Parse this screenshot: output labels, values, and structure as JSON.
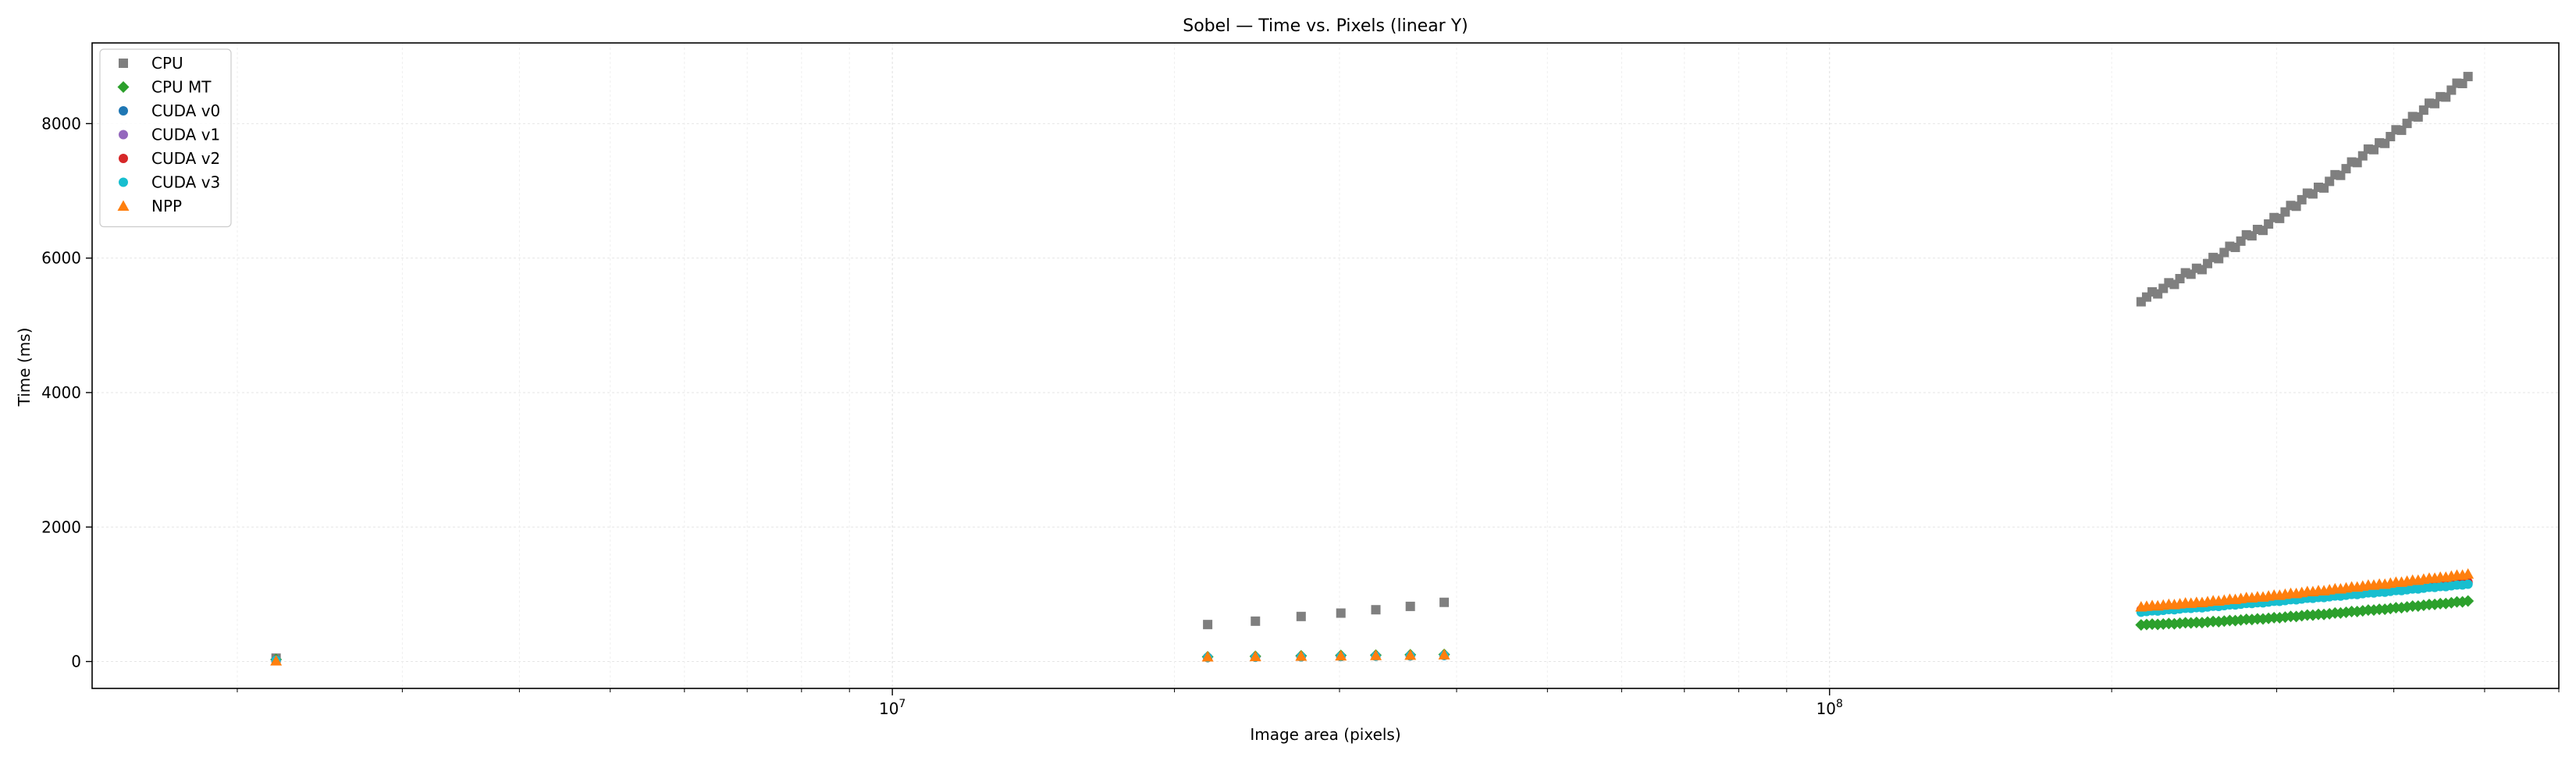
{
  "chart_data": {
    "type": "scatter",
    "title": "Sobel — Time vs. Pixels (linear Y)",
    "xlabel": "Image area (pixels)",
    "ylabel": "Time (ms)",
    "xscale": "log",
    "xlim": [
      1400000,
      600000000
    ],
    "ylim": [
      -400,
      9200
    ],
    "xticks": [
      {
        "value": 10000000,
        "label": "10^7"
      },
      {
        "value": 100000000,
        "label": "10^8"
      }
    ],
    "yticks": [
      0,
      2000,
      4000,
      6000,
      8000
    ],
    "ytick_labels": [
      "0",
      "2000",
      "4000",
      "6000",
      "8000"
    ],
    "grid": true,
    "legend_position": "upper-left",
    "series": [
      {
        "name": "CPU",
        "color": "#7f7f7f",
        "marker": "square",
        "x": [
          2200000,
          21700000,
          24400000,
          27300000,
          30100000,
          32800000,
          35700000,
          38800000
        ],
        "y": [
          50,
          550,
          600,
          670,
          720,
          770,
          820,
          880
        ],
        "dense": {
          "x_start": 215000000,
          "x_end": 480000000,
          "y_start": 5400,
          "y_end": 8700,
          "count": 60,
          "curve": 1.15
        }
      },
      {
        "name": "CPU MT",
        "color": "#2ca02c",
        "marker": "diamond",
        "x": [
          2200000,
          21700000,
          24400000,
          27300000,
          30100000,
          32800000,
          35700000,
          38800000
        ],
        "y": [
          30,
          70,
          78,
          85,
          90,
          95,
          100,
          105
        ],
        "dense": {
          "x_start": 215000000,
          "x_end": 480000000,
          "y_start": 550,
          "y_end": 900,
          "count": 60,
          "curve": 1.4
        }
      },
      {
        "name": "CUDA v0",
        "color": "#1f77b4",
        "marker": "circle",
        "x": [
          2200000,
          21700000,
          24400000,
          27300000,
          30100000,
          32800000,
          35700000,
          38800000
        ],
        "y": [
          20,
          60,
          65,
          70,
          75,
          80,
          85,
          90
        ],
        "dense": {
          "x_start": 215000000,
          "x_end": 480000000,
          "y_start": 760,
          "y_end": 1160,
          "count": 60,
          "curve": 1.1
        }
      },
      {
        "name": "CUDA v1",
        "color": "#9467bd",
        "marker": "circle",
        "x": [
          2200000,
          21700000,
          24400000,
          27300000,
          30100000,
          32800000,
          35700000,
          38800000
        ],
        "y": [
          20,
          60,
          65,
          70,
          75,
          80,
          85,
          90
        ],
        "dense": {
          "x_start": 215000000,
          "x_end": 480000000,
          "y_start": 770,
          "y_end": 1170,
          "count": 60,
          "curve": 1.1
        }
      },
      {
        "name": "CUDA v2",
        "color": "#d62728",
        "marker": "circle",
        "x": [
          2200000,
          21700000,
          24400000,
          27300000,
          30100000,
          32800000,
          35700000,
          38800000
        ],
        "y": [
          20,
          60,
          65,
          70,
          75,
          80,
          85,
          90
        ],
        "dense": {
          "x_start": 215000000,
          "x_end": 480000000,
          "y_start": 775,
          "y_end": 1180,
          "count": 60,
          "curve": 1.1
        }
      },
      {
        "name": "CUDA v3",
        "color": "#17becf",
        "marker": "circle",
        "x": [
          2200000,
          21700000,
          24400000,
          27300000,
          30100000,
          32800000,
          35700000,
          38800000
        ],
        "y": [
          20,
          60,
          65,
          70,
          75,
          80,
          85,
          90
        ],
        "dense": {
          "x_start": 215000000,
          "x_end": 480000000,
          "y_start": 740,
          "y_end": 1150,
          "count": 60,
          "curve": 1.1
        }
      },
      {
        "name": "NPP",
        "color": "#ff7f0e",
        "marker": "triangle",
        "x": [
          2200000,
          21700000,
          24400000,
          27300000,
          30100000,
          32800000,
          35700000,
          38800000
        ],
        "y": [
          10,
          70,
          75,
          80,
          85,
          90,
          95,
          100
        ],
        "dense": {
          "x_start": 215000000,
          "x_end": 480000000,
          "y_start": 820,
          "y_end": 1300,
          "count": 60,
          "curve": 1.2
        }
      }
    ]
  }
}
